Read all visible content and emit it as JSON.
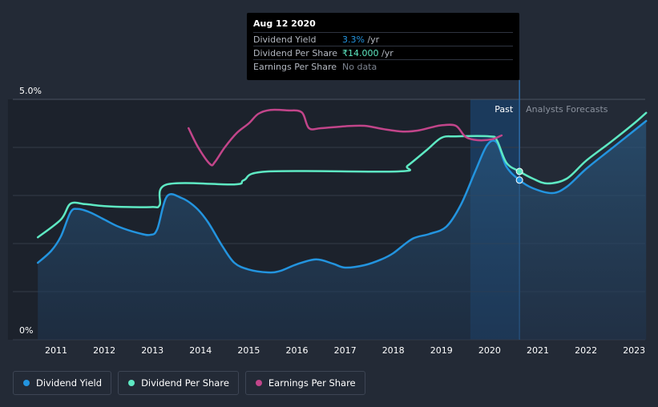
{
  "chart_data": {
    "type": "line",
    "x_ticks": [
      "2011",
      "2012",
      "2013",
      "2014",
      "2015",
      "2016",
      "2017",
      "2018",
      "2019",
      "2020",
      "2021",
      "2022",
      "2023"
    ],
    "y_ticks": [
      "5.0%",
      "0%"
    ],
    "ylim": [
      0,
      5.0
    ],
    "zones": {
      "past_label": "Past",
      "forecast_label": "Analysts Forecasts"
    },
    "legend_placement": "bottom",
    "series": [
      {
        "name": "Dividend Yield",
        "color": "#2394df",
        "area": true,
        "points": [
          [
            2010.62,
            1.6
          ],
          [
            2010.9,
            1.85
          ],
          [
            2011.1,
            2.15
          ],
          [
            2011.3,
            2.65
          ],
          [
            2011.45,
            2.72
          ],
          [
            2011.7,
            2.65
          ],
          [
            2012.0,
            2.5
          ],
          [
            2012.3,
            2.35
          ],
          [
            2012.7,
            2.22
          ],
          [
            2012.95,
            2.18
          ],
          [
            2013.1,
            2.3
          ],
          [
            2013.3,
            2.98
          ],
          [
            2013.6,
            2.95
          ],
          [
            2013.9,
            2.75
          ],
          [
            2014.15,
            2.45
          ],
          [
            2014.45,
            1.95
          ],
          [
            2014.7,
            1.6
          ],
          [
            2015.0,
            1.46
          ],
          [
            2015.4,
            1.4
          ],
          [
            2015.65,
            1.43
          ],
          [
            2016.0,
            1.57
          ],
          [
            2016.4,
            1.67
          ],
          [
            2016.75,
            1.58
          ],
          [
            2017.0,
            1.5
          ],
          [
            2017.4,
            1.55
          ],
          [
            2017.75,
            1.67
          ],
          [
            2018.0,
            1.8
          ],
          [
            2018.4,
            2.1
          ],
          [
            2018.75,
            2.2
          ],
          [
            2019.1,
            2.35
          ],
          [
            2019.4,
            2.8
          ],
          [
            2019.7,
            3.5
          ],
          [
            2019.95,
            4.05
          ],
          [
            2020.15,
            4.1
          ],
          [
            2020.35,
            3.6
          ],
          [
            2020.62,
            3.32
          ],
          [
            2020.9,
            3.15
          ],
          [
            2021.3,
            3.05
          ],
          [
            2021.6,
            3.18
          ],
          [
            2022.0,
            3.55
          ],
          [
            2022.5,
            3.95
          ],
          [
            2023.0,
            4.35
          ],
          [
            2023.25,
            4.55
          ]
        ]
      },
      {
        "name": "Dividend Per Share",
        "color": "#5ee9c3",
        "points": [
          [
            2010.62,
            2.13
          ],
          [
            2011.1,
            2.5
          ],
          [
            2011.3,
            2.83
          ],
          [
            2011.6,
            2.82
          ],
          [
            2012.0,
            2.78
          ],
          [
            2012.5,
            2.76
          ],
          [
            2013.0,
            2.76
          ],
          [
            2013.15,
            2.8
          ],
          [
            2013.3,
            3.23
          ],
          [
            2014.7,
            3.23
          ],
          [
            2014.9,
            3.32
          ],
          [
            2015.4,
            3.5
          ],
          [
            2018.1,
            3.5
          ],
          [
            2018.3,
            3.62
          ],
          [
            2018.7,
            3.95
          ],
          [
            2019.0,
            4.2
          ],
          [
            2019.3,
            4.23
          ],
          [
            2020.0,
            4.23
          ],
          [
            2020.15,
            4.15
          ],
          [
            2020.35,
            3.68
          ],
          [
            2020.62,
            3.5
          ],
          [
            2020.9,
            3.35
          ],
          [
            2021.2,
            3.25
          ],
          [
            2021.6,
            3.35
          ],
          [
            2022.0,
            3.72
          ],
          [
            2022.5,
            4.1
          ],
          [
            2023.0,
            4.5
          ],
          [
            2023.25,
            4.72
          ]
        ]
      },
      {
        "name": "Earnings Per Share",
        "color": "#c2458a",
        "points": [
          [
            2013.75,
            4.4
          ],
          [
            2013.95,
            4.0
          ],
          [
            2014.2,
            3.65
          ],
          [
            2014.3,
            3.7
          ],
          [
            2014.5,
            4.0
          ],
          [
            2014.75,
            4.3
          ],
          [
            2015.0,
            4.5
          ],
          [
            2015.2,
            4.7
          ],
          [
            2015.45,
            4.78
          ],
          [
            2015.8,
            4.77
          ],
          [
            2016.1,
            4.73
          ],
          [
            2016.25,
            4.4
          ],
          [
            2016.5,
            4.4
          ],
          [
            2017.0,
            4.44
          ],
          [
            2017.4,
            4.45
          ],
          [
            2017.8,
            4.38
          ],
          [
            2018.2,
            4.33
          ],
          [
            2018.5,
            4.35
          ],
          [
            2018.8,
            4.42
          ],
          [
            2019.0,
            4.46
          ],
          [
            2019.3,
            4.45
          ],
          [
            2019.5,
            4.22
          ],
          [
            2019.75,
            4.15
          ],
          [
            2020.05,
            4.17
          ],
          [
            2020.25,
            4.25
          ]
        ]
      }
    ],
    "tooltip": {
      "date": "Aug 12 2020",
      "rows": [
        {
          "label": "Dividend Yield",
          "value": "3.3%",
          "unit": " /yr",
          "color": "#2394df"
        },
        {
          "label": "Dividend Per Share",
          "value": "₹14.000",
          "unit": " /yr",
          "color": "#5ee9c3"
        },
        {
          "label": "Earnings Per Share",
          "value": "No data",
          "unit": "",
          "color": "#7d8490"
        }
      ]
    },
    "highlight": {
      "x": 2020.62,
      "yield": 3.32,
      "dps": 3.5
    }
  },
  "legend": [
    {
      "label": "Dividend Yield",
      "color": "#2394df"
    },
    {
      "label": "Dividend Per Share",
      "color": "#5ee9c3"
    },
    {
      "label": "Earnings Per Share",
      "color": "#c2458a"
    }
  ]
}
